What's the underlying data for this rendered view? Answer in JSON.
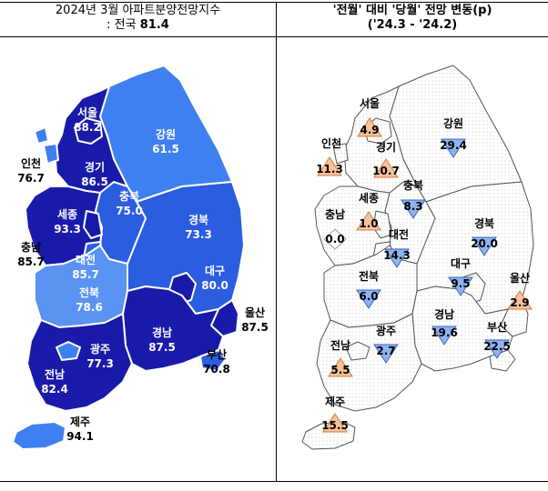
{
  "left_header": {
    "line1": "2024년 3월 아파트분양전망지수",
    "line2_prefix": ": 전국 ",
    "line2_value": "81.4"
  },
  "right_header": {
    "line1": "'전월' 대비 '당월' 전망 변동(p)",
    "line2": "('24.3  -  '24.2)"
  },
  "colors": {
    "dark": "#1a1aaa",
    "mid": "#2b5de0",
    "light": "#3f80f0",
    "lighter": "#5a93f2",
    "up_fill": "#f6c39d",
    "up_stroke": "#d07a3c",
    "down_fill": "#8eb3f0",
    "down_stroke": "#3a64b8",
    "flat_fill": "#ffffff"
  },
  "regions": [
    {
      "key": "seoul",
      "name": "서울",
      "index": "88.2",
      "change": "4.9",
      "direction": "up"
    },
    {
      "key": "incheon",
      "name": "인천",
      "index": "76.7",
      "change": "11.3",
      "direction": "up"
    },
    {
      "key": "gyeonggi",
      "name": "경기",
      "index": "86.5",
      "change": "10.7",
      "direction": "up"
    },
    {
      "key": "gangwon",
      "name": "강원",
      "index": "61.5",
      "change": "29.4",
      "direction": "down"
    },
    {
      "key": "chungbuk",
      "name": "충북",
      "index": "75.0",
      "change": "8.3",
      "direction": "down"
    },
    {
      "key": "sejong",
      "name": "세종",
      "index": "93.3",
      "change": "1.0",
      "direction": "up"
    },
    {
      "key": "chungnam",
      "name": "충남",
      "index": "85.7",
      "change": "0.0",
      "direction": "flat"
    },
    {
      "key": "daejeon",
      "name": "대전",
      "index": "85.7",
      "change": "14.3",
      "direction": "down"
    },
    {
      "key": "gyeongbuk",
      "name": "경북",
      "index": "73.3",
      "change": "20.0",
      "direction": "down"
    },
    {
      "key": "daegu",
      "name": "대구",
      "index": "80.0",
      "change": "9.5",
      "direction": "down"
    },
    {
      "key": "jeonbuk",
      "name": "전북",
      "index": "78.6",
      "change": "6.0",
      "direction": "down"
    },
    {
      "key": "ulsan",
      "name": "울산",
      "index": "87.5",
      "change": "2.9",
      "direction": "up"
    },
    {
      "key": "gwangju",
      "name": "광주",
      "index": "77.3",
      "change": "2.7",
      "direction": "down"
    },
    {
      "key": "gyeongnam",
      "name": "경남",
      "index": "87.5",
      "change": "19.6",
      "direction": "down"
    },
    {
      "key": "busan",
      "name": "부산",
      "index": "70.8",
      "change": "22.5",
      "direction": "down"
    },
    {
      "key": "jeonnam",
      "name": "전남",
      "index": "82.4",
      "change": "5.5",
      "direction": "up"
    },
    {
      "key": "jeju",
      "name": "제주",
      "index": "94.1",
      "change": "15.5",
      "direction": "up"
    }
  ]
}
